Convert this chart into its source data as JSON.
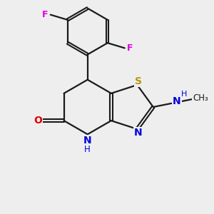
{
  "background_color": "#eeeeee",
  "bond_color": "#1a1a1a",
  "atom_colors": {
    "S": "#b8960c",
    "N": "#0000e0",
    "O": "#e00000",
    "F": "#e000e0",
    "C": "#1a1a1a"
  },
  "figsize": [
    3.0,
    3.0
  ],
  "dpi": 100,
  "xlim": [
    0,
    10
  ],
  "ylim": [
    0,
    10
  ]
}
